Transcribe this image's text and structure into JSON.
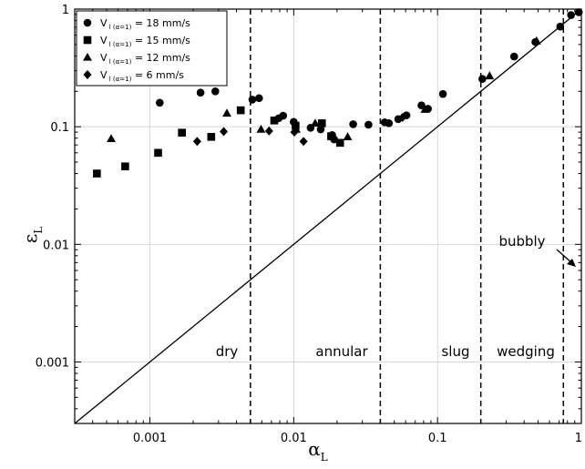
{
  "chart_data": {
    "type": "scatter",
    "xscale": "log",
    "yscale": "log",
    "xlim": [
      0.0003,
      1
    ],
    "ylim": [
      0.0003,
      1
    ],
    "xlabel": {
      "symbol": "α",
      "sub": "L"
    },
    "ylabel": {
      "symbol": "ε",
      "sub": "L"
    },
    "x_ticks": [
      {
        "value": 0.001,
        "label": "0.001"
      },
      {
        "value": 0.01,
        "label": "0.01"
      },
      {
        "value": 0.1,
        "label": "0.1"
      },
      {
        "value": 1,
        "label": "1"
      }
    ],
    "y_ticks": [
      {
        "value": 0.001,
        "label": "0.001"
      },
      {
        "value": 0.01,
        "label": "0.01"
      },
      {
        "value": 0.1,
        "label": "0.1"
      },
      {
        "value": 1,
        "label": "1"
      }
    ],
    "grid": true,
    "legend_position": "top-left",
    "reference_line": {
      "type": "y=x"
    },
    "series": [
      {
        "name": "V",
        "name_sub": "l (α=1)",
        "name_rest": " = 18 mm/s",
        "marker": "circle",
        "points": [
          [
            0.00117,
            0.16
          ],
          [
            0.00225,
            0.195
          ],
          [
            0.00285,
            0.2
          ],
          [
            0.00516,
            0.17
          ],
          [
            0.00574,
            0.175
          ],
          [
            0.00785,
            0.118
          ],
          [
            0.00844,
            0.124
          ],
          [
            0.01,
            0.11
          ],
          [
            0.0131,
            0.098
          ],
          [
            0.0154,
            0.095
          ],
          [
            0.0185,
            0.085
          ],
          [
            0.0191,
            0.078
          ],
          [
            0.0259,
            0.105
          ],
          [
            0.0331,
            0.104
          ],
          [
            0.0429,
            0.109
          ],
          [
            0.0459,
            0.107
          ],
          [
            0.0533,
            0.116
          ],
          [
            0.0608,
            0.125
          ],
          [
            0.0773,
            0.152
          ],
          [
            0.0858,
            0.142
          ],
          [
            0.109,
            0.19
          ],
          [
            0.205,
            0.255
          ],
          [
            0.341,
            0.395
          ],
          [
            0.479,
            0.525
          ],
          [
            0.713,
            0.71
          ],
          [
            0.848,
            0.89
          ],
          [
            0.96,
            0.94
          ]
        ]
      },
      {
        "name": "V",
        "name_sub": "l (α=1)",
        "name_rest": " = 15 mm/s",
        "marker": "square",
        "points": [
          [
            0.000428,
            0.04
          ],
          [
            0.000673,
            0.046
          ],
          [
            0.00114,
            0.06
          ],
          [
            0.00167,
            0.089
          ],
          [
            0.00267,
            0.082
          ],
          [
            0.00428,
            0.138
          ],
          [
            0.00732,
            0.113
          ],
          [
            0.0103,
            0.102
          ],
          [
            0.0157,
            0.107
          ],
          [
            0.0182,
            0.083
          ],
          [
            0.021,
            0.073
          ]
        ]
      },
      {
        "name": "V",
        "name_sub": "l (α=1)",
        "name_rest": " = 12 mm/s",
        "marker": "triangle",
        "points": [
          [
            0.000538,
            0.079
          ],
          [
            0.00343,
            0.13
          ],
          [
            0.00592,
            0.095
          ],
          [
            0.0104,
            0.095
          ],
          [
            0.0141,
            0.107
          ],
          [
            0.0237,
            0.082
          ],
          [
            0.0818,
            0.14
          ],
          [
            0.23,
            0.27
          ],
          [
            0.488,
            0.535
          ]
        ]
      },
      {
        "name": "V",
        "name_sub": "l (α=1)",
        "name_rest": " = 6 mm/s",
        "marker": "diamond",
        "points": [
          [
            0.00213,
            0.075
          ],
          [
            0.00326,
            0.091
          ],
          [
            0.00674,
            0.092
          ],
          [
            0.0101,
            0.09
          ],
          [
            0.0117,
            0.075
          ],
          [
            0.0571,
            0.12
          ]
        ]
      }
    ],
    "regions": [
      {
        "label": "dry",
        "boundary": 0.005
      },
      {
        "label": "annular",
        "boundary": 0.04
      },
      {
        "label": "slug",
        "boundary": 0.2
      },
      {
        "label": "wedging",
        "boundary": 0.75
      },
      {
        "label": "bubbly"
      }
    ]
  }
}
